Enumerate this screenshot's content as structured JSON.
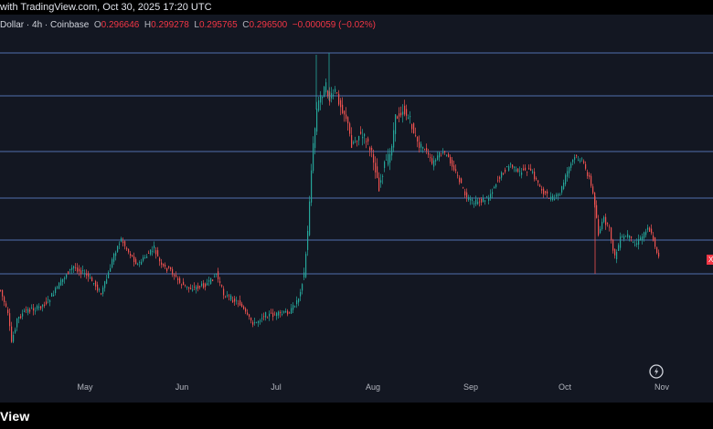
{
  "header": {
    "text": "with TradingView.com, Oct 30, 2025 17:20 UTC"
  },
  "ohlc": {
    "symbol": "Dollar · 4h · Coinbase",
    "open_label": "O",
    "open_value": "0.296646",
    "high_label": "H",
    "high_value": "0.299278",
    "low_label": "L",
    "low_value": "0.295765",
    "close_label": "C",
    "close_value": "0.296500",
    "change_value": "−0.000059 (−0.02%)"
  },
  "x_axis": {
    "labels": [
      "May",
      "Jun",
      "Jul",
      "Aug",
      "Sep",
      "Oct",
      "Nov"
    ]
  },
  "chart": {
    "colors": {
      "up": "#26a69a",
      "down": "#ef5350",
      "level_line": "#5b7fc7",
      "background": "#131722"
    }
  },
  "price_marker": {
    "text": "X"
  },
  "footer": {
    "brand": "View"
  },
  "icons": {
    "logo": "tradingview-logo-icon"
  }
}
